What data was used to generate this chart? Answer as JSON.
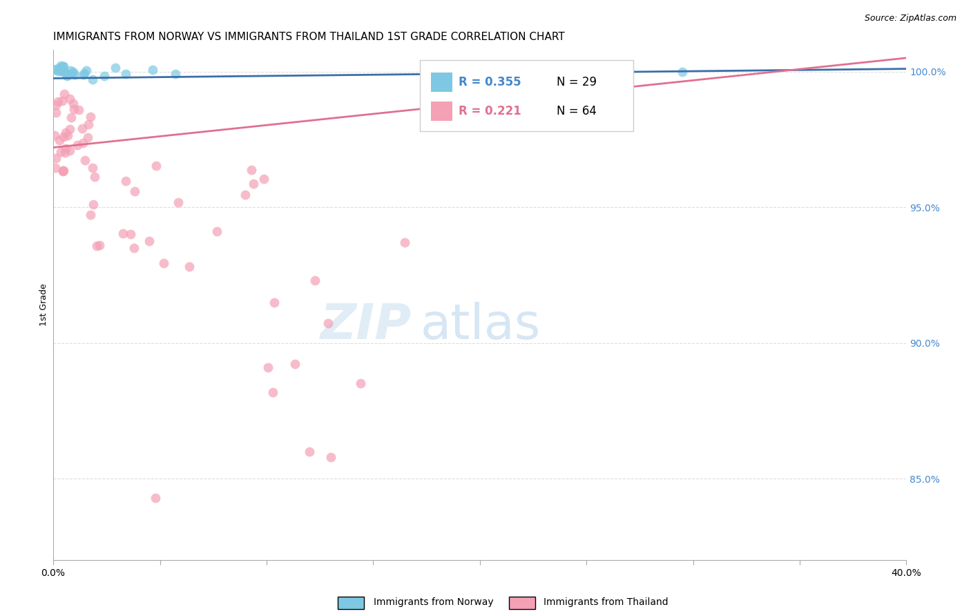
{
  "title": "IMMIGRANTS FROM NORWAY VS IMMIGRANTS FROM THAILAND 1ST GRADE CORRELATION CHART",
  "source": "Source: ZipAtlas.com",
  "ylabel": "1st Grade",
  "xlim": [
    0.0,
    0.4
  ],
  "ylim": [
    0.82,
    1.008
  ],
  "y_ticks": [
    0.85,
    0.9,
    0.95,
    1.0
  ],
  "y_tick_labels": [
    "85.0%",
    "90.0%",
    "95.0%",
    "100.0%"
  ],
  "x_ticks": [
    0.0,
    0.05,
    0.1,
    0.15,
    0.2,
    0.25,
    0.3,
    0.35,
    0.4
  ],
  "x_tick_labels": [
    "0.0%",
    "",
    "",
    "",
    "",
    "",
    "",
    "",
    "40.0%"
  ],
  "norway_color": "#7ec8e3",
  "thailand_color": "#f4a0b5",
  "norway_line_color": "#3a6fa8",
  "thailand_line_color": "#e07090",
  "legend_norway_label": "Immigrants from Norway",
  "legend_thailand_label": "Immigrants from Thailand",
  "norway_R": 0.355,
  "norway_N": 29,
  "thailand_R": 0.221,
  "thailand_N": 64,
  "norway_line_x0": 0.0,
  "norway_line_x1": 0.4,
  "norway_line_y0": 0.9975,
  "norway_line_y1": 1.001,
  "thailand_line_x0": 0.0,
  "thailand_line_x1": 0.4,
  "thailand_line_y0": 0.972,
  "thailand_line_y1": 1.005,
  "watermark_zip": "ZIP",
  "watermark_atlas": "atlas",
  "background_color": "#ffffff",
  "grid_color": "#dddddd",
  "right_label_color": "#4488cc"
}
